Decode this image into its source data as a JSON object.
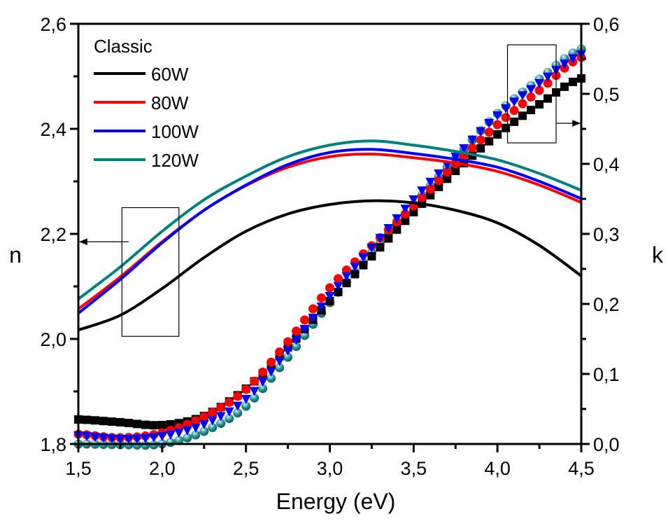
{
  "chart_data": {
    "type": "line",
    "title": "",
    "xlabel": "Energy (eV)",
    "ylabel_left": "n",
    "ylabel_right": "k",
    "xlim": [
      1.5,
      4.5
    ],
    "ylim_left": [
      1.8,
      2.6
    ],
    "ylim_right": [
      0.0,
      0.6
    ],
    "x_ticks": [
      "1,5",
      "2,0",
      "2,5",
      "3,0",
      "3,5",
      "4,0",
      "4,5"
    ],
    "x_tick_values": [
      1.5,
      2.0,
      2.5,
      3.0,
      3.5,
      4.0,
      4.5
    ],
    "y_left_ticks": [
      "1,8",
      "2,0",
      "2,2",
      "2,4",
      "2,6"
    ],
    "y_left_tick_values": [
      1.8,
      2.0,
      2.2,
      2.4,
      2.6
    ],
    "y_right_ticks": [
      "0,0",
      "0,1",
      "0,2",
      "0,3",
      "0,4",
      "0,5",
      "0,6"
    ],
    "y_right_tick_values": [
      0.0,
      0.1,
      0.2,
      0.3,
      0.4,
      0.5,
      0.6
    ],
    "grid": false,
    "legend": {
      "title": "Classic",
      "placement": "top-left",
      "entries": [
        "60W",
        "80W",
        "100W",
        "120W"
      ]
    },
    "annotations": [
      {
        "type": "box-arrow",
        "target_axis": "left",
        "x_range": [
          1.75,
          2.1
        ],
        "label": "n curves point to left axis"
      },
      {
        "type": "box-arrow",
        "target_axis": "right",
        "x_range": [
          4.05,
          4.35
        ],
        "label": "k curves point to right axis"
      }
    ],
    "n_series": [
      {
        "name": "60W",
        "color": "#000000",
        "x": [
          1.5,
          1.75,
          2.0,
          2.25,
          2.5,
          2.75,
          3.0,
          3.25,
          3.5,
          3.75,
          4.0,
          4.25,
          4.5
        ],
        "values": [
          2.017,
          2.045,
          2.096,
          2.155,
          2.205,
          2.238,
          2.256,
          2.263,
          2.259,
          2.245,
          2.221,
          2.178,
          2.12
        ]
      },
      {
        "name": "80W",
        "color": "#ff0000",
        "x": [
          1.5,
          1.75,
          2.0,
          2.25,
          2.5,
          2.75,
          3.0,
          3.25,
          3.5,
          3.75,
          4.0,
          4.25,
          4.5
        ],
        "values": [
          2.057,
          2.118,
          2.185,
          2.245,
          2.292,
          2.327,
          2.347,
          2.352,
          2.345,
          2.335,
          2.319,
          2.293,
          2.26
        ]
      },
      {
        "name": "100W",
        "color": "#0000ff",
        "x": [
          1.5,
          1.75,
          2.0,
          2.25,
          2.5,
          2.75,
          3.0,
          3.25,
          3.5,
          3.75,
          4.0,
          4.25,
          4.5
        ],
        "values": [
          2.049,
          2.113,
          2.183,
          2.245,
          2.293,
          2.332,
          2.355,
          2.361,
          2.353,
          2.342,
          2.327,
          2.3,
          2.267
        ]
      },
      {
        "name": "120W",
        "color": "#008080",
        "x": [
          1.5,
          1.75,
          2.0,
          2.25,
          2.5,
          2.75,
          3.0,
          3.25,
          3.5,
          3.75,
          4.0,
          4.25,
          4.5
        ],
        "values": [
          2.076,
          2.137,
          2.205,
          2.265,
          2.31,
          2.347,
          2.369,
          2.377,
          2.369,
          2.357,
          2.341,
          2.315,
          2.283
        ]
      }
    ],
    "k_series": [
      {
        "name": "60W",
        "color": "#000000",
        "marker": "square",
        "x": [
          1.5,
          1.75,
          2.0,
          2.25,
          2.5,
          2.75,
          3.0,
          3.25,
          3.5,
          3.75,
          4.0,
          4.25,
          4.5
        ],
        "values": [
          0.035,
          0.031,
          0.027,
          0.04,
          0.079,
          0.138,
          0.204,
          0.268,
          0.331,
          0.39,
          0.442,
          0.485,
          0.522
        ]
      },
      {
        "name": "80W",
        "color": "#ff0000",
        "marker": "circle",
        "x": [
          1.5,
          1.75,
          2.0,
          2.25,
          2.5,
          2.75,
          3.0,
          3.25,
          3.5,
          3.75,
          4.0,
          4.25,
          4.5
        ],
        "values": [
          0.014,
          0.009,
          0.016,
          0.039,
          0.078,
          0.146,
          0.223,
          0.283,
          0.34,
          0.4,
          0.456,
          0.505,
          0.552
        ]
      },
      {
        "name": "100W",
        "color": "#0000ff",
        "marker": "triangle-down",
        "x": [
          1.5,
          1.75,
          2.0,
          2.25,
          2.5,
          2.75,
          3.0,
          3.25,
          3.5,
          3.75,
          4.0,
          4.25,
          4.5
        ],
        "values": [
          0.012,
          0.007,
          0.011,
          0.028,
          0.064,
          0.133,
          0.211,
          0.28,
          0.349,
          0.41,
          0.469,
          0.515,
          0.556
        ]
      },
      {
        "name": "120W",
        "color": "#008080",
        "marker": "sphere",
        "x": [
          1.5,
          1.75,
          2.0,
          2.25,
          2.5,
          2.75,
          3.0,
          3.25,
          3.5,
          3.75,
          4.0,
          4.25,
          4.5
        ],
        "values": [
          0.002,
          0.001,
          0.002,
          0.02,
          0.056,
          0.126,
          0.204,
          0.275,
          0.344,
          0.41,
          0.474,
          0.523,
          0.566
        ]
      }
    ]
  }
}
